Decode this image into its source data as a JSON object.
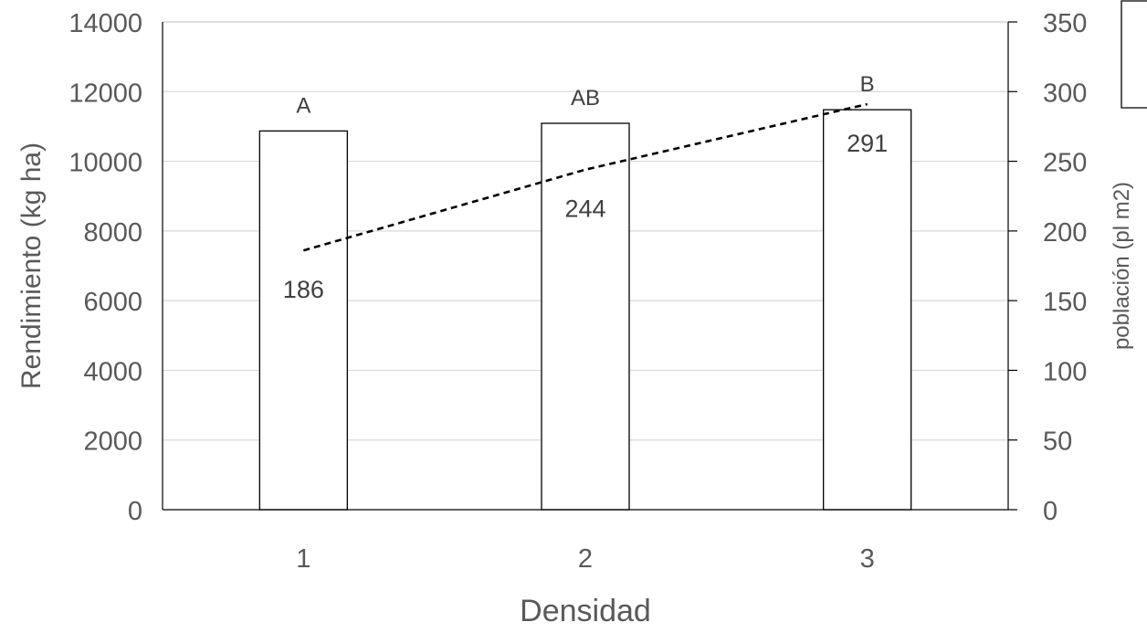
{
  "chart_data": {
    "type": "bar",
    "categories": [
      "1",
      "2",
      "3"
    ],
    "xlabel": "Densidad",
    "ylabel": "Rendimiento (kg ha)",
    "y2label": "población (pl m2)",
    "ylim": [
      0,
      14000
    ],
    "y2lim": [
      0,
      350
    ],
    "yticks": [
      "0",
      "2000",
      "4000",
      "6000",
      "8000",
      "10000",
      "12000",
      "14000"
    ],
    "y2ticks": [
      "0",
      "50",
      "100",
      "150",
      "200",
      "250",
      "300",
      "350"
    ],
    "grid": true,
    "series": [
      {
        "kind": "bar",
        "axis": "left",
        "values": [
          10870,
          11090,
          11480
        ],
        "labels": [
          "A",
          "AB",
          "B"
        ]
      },
      {
        "kind": "line",
        "axis": "right",
        "style": "dashed",
        "values": [
          186,
          244,
          291
        ],
        "labels": [
          "186",
          "244",
          "291"
        ]
      }
    ],
    "colors": {
      "bar_fill": "#ffffff",
      "bar_stroke": "#000000",
      "grid": "#d9d9d9",
      "line": "#000000",
      "text": "#595959"
    }
  }
}
